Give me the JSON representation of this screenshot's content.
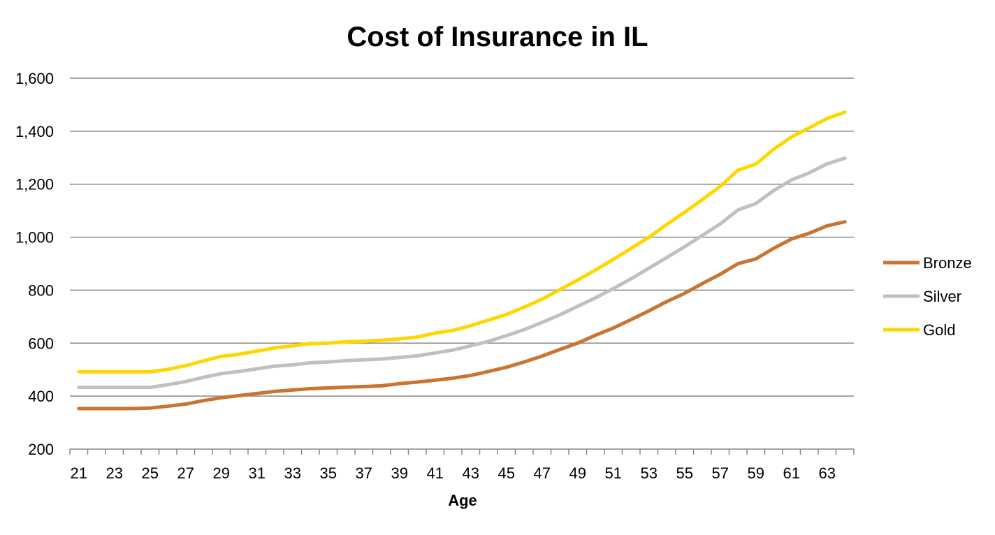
{
  "chart_data": {
    "type": "line",
    "title": "Cost of Insurance in IL",
    "xlabel": "Age",
    "ylabel": "",
    "ylim": [
      200,
      1600
    ],
    "yticks": [
      200,
      400,
      600,
      800,
      1000,
      1200,
      1400,
      1600
    ],
    "ytick_labels": [
      "200",
      "400",
      "600",
      "800",
      "1,000",
      "1,200",
      "1,400",
      "1,600"
    ],
    "x": [
      21,
      22,
      23,
      24,
      25,
      26,
      27,
      28,
      29,
      30,
      31,
      32,
      33,
      34,
      35,
      36,
      37,
      38,
      39,
      40,
      41,
      42,
      43,
      44,
      45,
      46,
      47,
      48,
      49,
      50,
      51,
      52,
      53,
      54,
      55,
      56,
      57,
      58,
      59,
      60,
      61,
      62,
      63,
      64
    ],
    "xtick_labels": [
      "21",
      "23",
      "25",
      "27",
      "29",
      "31",
      "33",
      "35",
      "37",
      "39",
      "41",
      "43",
      "45",
      "47",
      "49",
      "51",
      "53",
      "55",
      "57",
      "59",
      "61",
      "63"
    ],
    "grid": true,
    "legend_position": "right",
    "series": [
      {
        "name": "Bronze",
        "color": "#C87533",
        "values": [
          353,
          353,
          353,
          353,
          355,
          362,
          370,
          383,
          394,
          402,
          410,
          418,
          423,
          428,
          431,
          434,
          436,
          439,
          447,
          453,
          460,
          468,
          478,
          493,
          509,
          529,
          551,
          576,
          600,
          630,
          657,
          689,
          722,
          757,
          788,
          825,
          860,
          900,
          918,
          958,
          993,
          1015,
          1043,
          1058
        ]
      },
      {
        "name": "Silver",
        "color": "#C0C0C0",
        "values": [
          433,
          433,
          433,
          433,
          433,
          443,
          455,
          471,
          485,
          493,
          503,
          513,
          518,
          526,
          529,
          534,
          537,
          540,
          546,
          552,
          563,
          574,
          590,
          607,
          628,
          651,
          678,
          707,
          739,
          771,
          806,
          843,
          883,
          923,
          964,
          1007,
          1050,
          1103,
          1127,
          1176,
          1216,
          1243,
          1277,
          1298
        ]
      },
      {
        "name": "Gold",
        "color": "#FFD700",
        "values": [
          492,
          492,
          492,
          492,
          492,
          501,
          515,
          533,
          550,
          558,
          570,
          582,
          590,
          598,
          600,
          605,
          607,
          611,
          616,
          623,
          638,
          648,
          666,
          687,
          708,
          736,
          766,
          802,
          838,
          876,
          916,
          958,
          1000,
          1048,
          1094,
          1142,
          1192,
          1253,
          1276,
          1332,
          1378,
          1413,
          1448,
          1472
        ]
      }
    ]
  }
}
